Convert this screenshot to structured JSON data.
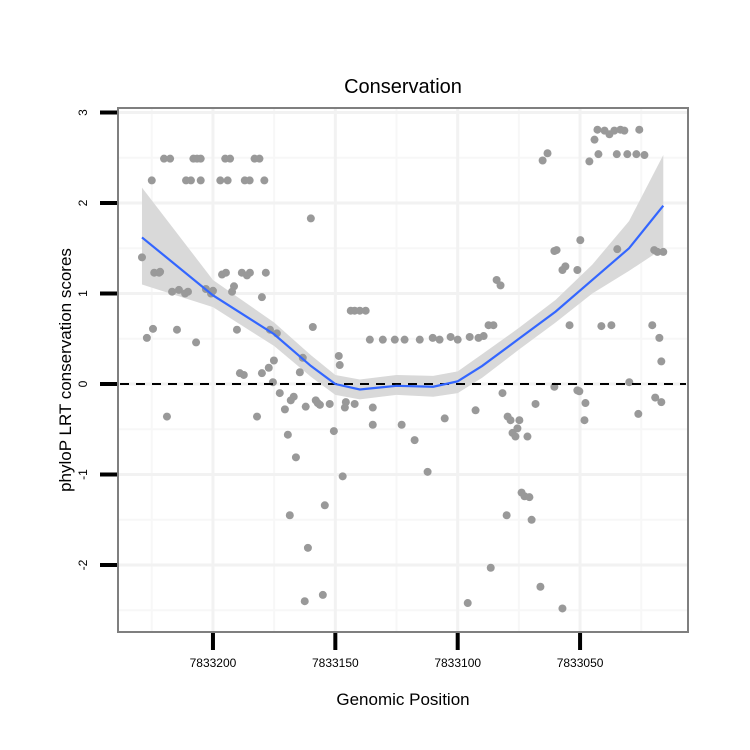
{
  "chart_data": {
    "type": "scatter",
    "title": "Conservation",
    "xlabel": "Genomic Position",
    "ylabel": "phyloP LRT conservation scores",
    "xlim": [
      7833238.8,
      7833005.9
    ],
    "x_reversed": true,
    "ylim": [
      -2.74,
      3.05
    ],
    "x_ticks": [
      7833200,
      7833150,
      7833100,
      7833050
    ],
    "x_tick_labels": [
      "7833200",
      "7833150",
      "7833100",
      "7833050"
    ],
    "y_ticks": [
      -2,
      -1,
      0,
      1,
      2,
      3
    ],
    "y_tick_labels": [
      "-2",
      "-1",
      "0",
      "1",
      "2",
      "3"
    ],
    "grid": true,
    "reference_line": {
      "y": 0,
      "style": "dashed"
    },
    "colors": {
      "points": "#999999",
      "smooth": "#3366FF",
      "ribbon": "#D9D9D9",
      "border": "#7f7f7f"
    },
    "points": [
      [
        7833220,
        2.49
      ],
      [
        7833217.5,
        2.49
      ],
      [
        7833208,
        2.49
      ],
      [
        7833206.5,
        2.49
      ],
      [
        7833205,
        2.49
      ],
      [
        7833195,
        2.49
      ],
      [
        7833193,
        2.49
      ],
      [
        7833183,
        2.49
      ],
      [
        7833181,
        2.49
      ],
      [
        7833225,
        2.25
      ],
      [
        7833211,
        2.25
      ],
      [
        7833209,
        2.25
      ],
      [
        7833205,
        2.25
      ],
      [
        7833197,
        2.25
      ],
      [
        7833194,
        2.25
      ],
      [
        7833187,
        2.25
      ],
      [
        7833185,
        2.25
      ],
      [
        7833179,
        2.25
      ],
      [
        7833229,
        1.4
      ],
      [
        7833227,
        0.51
      ],
      [
        7833224.5,
        0.61
      ],
      [
        7833224,
        1.23
      ],
      [
        7833222,
        1.23
      ],
      [
        7833221.6,
        1.24
      ],
      [
        7833218.8,
        -0.36
      ],
      [
        7833216.7,
        1.02
      ],
      [
        7833214.7,
        0.6
      ],
      [
        7833213.9,
        1.04
      ],
      [
        7833211.4,
        1.0
      ],
      [
        7833210.2,
        1.02
      ],
      [
        7833206.9,
        0.46
      ],
      [
        7833202.9,
        1.05
      ],
      [
        7833200.8,
        1.0
      ],
      [
        7833200,
        1.03
      ],
      [
        7833196.3,
        1.21
      ],
      [
        7833194.7,
        1.23
      ],
      [
        7833192.2,
        1.02
      ],
      [
        7833191.4,
        1.08
      ],
      [
        7833190.2,
        0.6
      ],
      [
        7833188.2,
        1.23
      ],
      [
        7833186.1,
        1.2
      ],
      [
        7833184.9,
        1.23
      ],
      [
        7833182,
        -0.36
      ],
      [
        7833178.4,
        1.23
      ],
      [
        7833180,
        0.96
      ],
      [
        7833176.7,
        0.6
      ],
      [
        7833189,
        0.12
      ],
      [
        7833187.4,
        0.1
      ],
      [
        7833180,
        0.12
      ],
      [
        7833177.2,
        0.18
      ],
      [
        7833175.1,
        0.26
      ],
      [
        7833173.9,
        0.56
      ],
      [
        7833175.5,
        0.02
      ],
      [
        7833172.7,
        -0.1
      ],
      [
        7833170.6,
        -0.28
      ],
      [
        7833169.4,
        -0.56
      ],
      [
        7833168.2,
        -0.18
      ],
      [
        7833166.1,
        -0.81
      ],
      [
        7833168.6,
        -1.45
      ],
      [
        7833167,
        -0.14
      ],
      [
        7833164.5,
        0.13
      ],
      [
        7833163.3,
        0.29
      ],
      [
        7833162.1,
        -0.25
      ],
      [
        7833161.2,
        -1.81
      ],
      [
        7833160,
        1.83
      ],
      [
        7833159.2,
        0.63
      ],
      [
        7833158,
        -0.18
      ],
      [
        7833157.2,
        -0.21
      ],
      [
        7833156.3,
        -0.23
      ],
      [
        7833155.1,
        -2.33
      ],
      [
        7833154.3,
        -1.34
      ],
      [
        7833152.3,
        -0.22
      ],
      [
        7833150.6,
        -0.52
      ],
      [
        7833148.6,
        0.31
      ],
      [
        7833148.2,
        0.21
      ],
      [
        7833146.1,
        -0.26
      ],
      [
        7833147,
        -1.02
      ],
      [
        7833143.7,
        0.81
      ],
      [
        7833142.1,
        0.81
      ],
      [
        7833140,
        0.81
      ],
      [
        7833137.6,
        0.81
      ],
      [
        7833135.9,
        0.49
      ],
      [
        7833134.7,
        -0.26
      ],
      [
        7833145.7,
        -0.2
      ],
      [
        7833142.1,
        -0.22
      ],
      [
        7833134.7,
        -0.45
      ],
      [
        7833130.6,
        0.49
      ],
      [
        7833125.7,
        0.49
      ],
      [
        7833121.7,
        0.49
      ],
      [
        7833115.5,
        0.49
      ],
      [
        7833107.4,
        0.49
      ],
      [
        7833122.9,
        -0.45
      ],
      [
        7833117.6,
        -0.62
      ],
      [
        7833112.3,
        -0.97
      ],
      [
        7833110.2,
        0.51
      ],
      [
        7833105.3,
        -0.38
      ],
      [
        7833102.9,
        0.52
      ],
      [
        7833100,
        0.49
      ],
      [
        7833095.1,
        0.52
      ],
      [
        7833092.7,
        -0.29
      ],
      [
        7833091.5,
        0.51
      ],
      [
        7833089.4,
        0.53
      ],
      [
        7833087.4,
        0.65
      ],
      [
        7833085.4,
        0.65
      ],
      [
        7833084.1,
        1.15
      ],
      [
        7833082.5,
        1.09
      ],
      [
        7833081.7,
        -0.1
      ],
      [
        7833079.6,
        -0.36
      ],
      [
        7833078.4,
        -0.4
      ],
      [
        7833077.6,
        -0.54
      ],
      [
        7833076.4,
        -0.58
      ],
      [
        7833075.6,
        -0.49
      ],
      [
        7833074.8,
        -0.4
      ],
      [
        7833073.9,
        -1.2
      ],
      [
        7833072.7,
        -1.24
      ],
      [
        7833071.5,
        -0.58
      ],
      [
        7833070.7,
        -1.25
      ],
      [
        7833069.8,
        -1.5
      ],
      [
        7833068.2,
        -0.22
      ],
      [
        7833066.2,
        -2.24
      ],
      [
        7833065.3,
        2.47
      ],
      [
        7833063.3,
        2.55
      ],
      [
        7833060.5,
        1.47
      ],
      [
        7833059.6,
        1.48
      ],
      [
        7833057.2,
        1.26
      ],
      [
        7833056,
        1.3
      ],
      [
        7833054.3,
        0.65
      ],
      [
        7833051.1,
        1.26
      ],
      [
        7833051.1,
        -0.07
      ],
      [
        7833049.9,
        1.59
      ],
      [
        7833048.2,
        -0.4
      ],
      [
        7833046.2,
        2.46
      ],
      [
        7833044.1,
        2.7
      ],
      [
        7833042.9,
        2.81
      ],
      [
        7833041.3,
        0.64
      ],
      [
        7833040,
        2.8
      ],
      [
        7833038,
        2.76
      ],
      [
        7833037.2,
        0.65
      ],
      [
        7833036,
        2.8
      ],
      [
        7833034.8,
        1.49
      ],
      [
        7833033.5,
        2.81
      ],
      [
        7833031.9,
        2.8
      ],
      [
        7833030.7,
        2.54
      ],
      [
        7833023.7,
        2.53
      ],
      [
        7833019.7,
        1.48
      ],
      [
        7833018.4,
        1.46
      ],
      [
        7833016,
        1.46
      ],
      [
        7833020.5,
        0.65
      ],
      [
        7833017.6,
        0.51
      ],
      [
        7833016.8,
        0.25
      ],
      [
        7833019.3,
        -0.15
      ],
      [
        7833016.8,
        -0.2
      ],
      [
        7833026.2,
        -0.33
      ],
      [
        7833047.8,
        -0.21
      ],
      [
        7833029.9,
        0.02
      ],
      [
        7833050.3,
        -0.08
      ],
      [
        7833060.5,
        -0.03
      ],
      [
        7833025.8,
        2.81
      ],
      [
        7833042.5,
        2.54
      ],
      [
        7833095.9,
        -2.42
      ],
      [
        7833086.5,
        -2.03
      ],
      [
        7833080,
        -1.45
      ],
      [
        7833057.2,
        -2.48
      ],
      [
        7833162.5,
        -2.4
      ],
      [
        7833035,
        2.54
      ],
      [
        7833027,
        2.54
      ]
    ],
    "smooth": {
      "x": [
        7833229,
        7833200,
        7833175,
        7833160,
        7833150,
        7833140,
        7833125,
        7833110,
        7833100,
        7833090,
        7833075,
        7833060,
        7833045,
        7833030,
        7833016
      ],
      "y": [
        1.62,
        0.98,
        0.55,
        0.2,
        0.0,
        -0.06,
        -0.02,
        -0.03,
        0.03,
        0.2,
        0.5,
        0.8,
        1.15,
        1.5,
        1.97
      ],
      "lower": [
        1.1,
        0.85,
        0.42,
        0.08,
        -0.12,
        -0.17,
        -0.12,
        -0.14,
        -0.1,
        0.07,
        0.38,
        0.68,
        1.0,
        1.25,
        1.5
      ],
      "upper": [
        2.17,
        1.15,
        0.68,
        0.32,
        0.1,
        0.05,
        0.1,
        0.09,
        0.14,
        0.33,
        0.62,
        0.93,
        1.32,
        1.8,
        2.53
      ]
    }
  }
}
